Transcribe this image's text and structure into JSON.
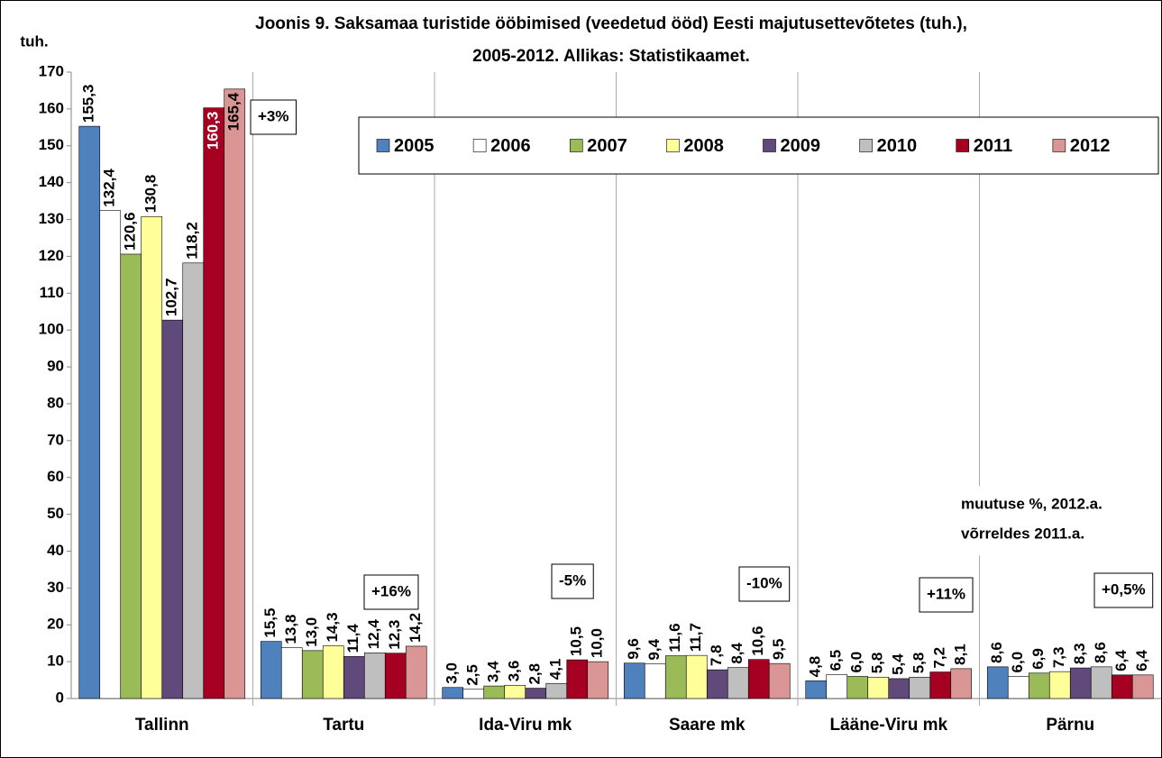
{
  "chart_data": {
    "type": "bar",
    "title": [
      "Joonis 9. Saksamaa turistide ööbimised (veedetud ööd) Eesti majutusettevõtetes (tuh.),",
      "2005-2012. Allikas: Statistikaamet."
    ],
    "y_label": "tuh.",
    "categories": [
      "Tallinn",
      "Tartu",
      "Ida-Viru mk",
      "Saare mk",
      "Lääne-Viru mk",
      "Pärnu"
    ],
    "series": [
      {
        "name": "2005",
        "color": "#4f81bd",
        "values": [
          155.3,
          15.5,
          3.0,
          9.6,
          4.8,
          8.6
        ],
        "value_labels": [
          "155,3",
          "15,5",
          "3,0",
          "9,6",
          "4,8",
          "8,6"
        ]
      },
      {
        "name": "2006",
        "color": "#ffffff",
        "values": [
          132.4,
          13.8,
          2.5,
          9.4,
          6.5,
          6.0
        ],
        "value_labels": [
          "132,4",
          "13,8",
          "2,5",
          "9,4",
          "6,5",
          "6,0"
        ]
      },
      {
        "name": "2007",
        "color": "#9bbb59",
        "values": [
          120.6,
          13.0,
          3.4,
          11.6,
          6.0,
          6.9
        ],
        "value_labels": [
          "120,6",
          "13,0",
          "3,4",
          "11,6",
          "6,0",
          "6,9"
        ]
      },
      {
        "name": "2008",
        "color": "#ffff99",
        "values": [
          130.8,
          14.3,
          3.6,
          11.7,
          5.8,
          7.3
        ],
        "value_labels": [
          "130,8",
          "14,3",
          "3,6",
          "11,7",
          "5,8",
          "7,3"
        ]
      },
      {
        "name": "2009",
        "color": "#604a7b",
        "values": [
          102.7,
          11.4,
          2.8,
          7.8,
          5.4,
          8.3
        ],
        "value_labels": [
          "102,7",
          "11,4",
          "2,8",
          "7,8",
          "5,4",
          "8,3"
        ]
      },
      {
        "name": "2010",
        "color": "#bfbfbf",
        "values": [
          118.2,
          12.4,
          4.1,
          8.4,
          5.8,
          8.6
        ],
        "value_labels": [
          "118,2",
          "12,4",
          "4,1",
          "8,4",
          "5,8",
          "8,6"
        ]
      },
      {
        "name": "2011",
        "color": "#a50021",
        "values": [
          160.3,
          12.3,
          10.5,
          10.6,
          7.2,
          6.4
        ],
        "value_labels": [
          "160,3",
          "12,3",
          "10,5",
          "10,6",
          "7,2",
          "6,4"
        ]
      },
      {
        "name": "2012",
        "color": "#d99694",
        "values": [
          165.4,
          14.2,
          10.0,
          9.5,
          8.1,
          6.4
        ],
        "value_labels": [
          "165,4",
          "14,2",
          "10,0",
          "9,5",
          "8,1",
          "6,4"
        ]
      }
    ],
    "annotations": [
      "+3%",
      "+16%",
      "-5%",
      "-10%",
      "+11%",
      "+0,5%"
    ],
    "note": [
      "muutuse %, 2012.a.",
      "võrreldes 2011.a."
    ],
    "ylim": [
      0,
      170
    ],
    "yticks": [
      0,
      10,
      20,
      30,
      40,
      50,
      60,
      70,
      80,
      90,
      100,
      110,
      120,
      130,
      140,
      150,
      160,
      170
    ],
    "grid": false,
    "legend": "top-right"
  }
}
